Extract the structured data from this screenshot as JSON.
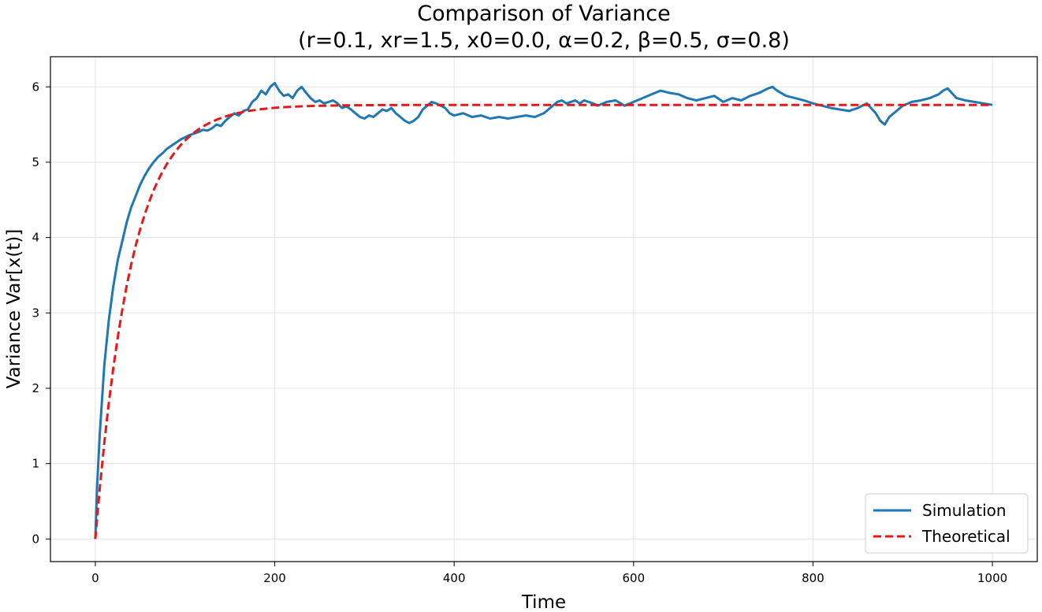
{
  "chart_data": {
    "type": "line",
    "title": "Comparison of Variance",
    "subtitle": "(r=0.1, xr=1.5, x0=0.0, α=0.2, β=0.5, σ=0.8)",
    "xlabel": "Time",
    "ylabel": "Variance Var[x(t)]",
    "xlim": [
      -50,
      1050
    ],
    "ylim": [
      -0.3,
      6.4
    ],
    "xticks": [
      0,
      200,
      400,
      600,
      800,
      1000
    ],
    "yticks": [
      0,
      1,
      2,
      3,
      4,
      5,
      6
    ],
    "grid": true,
    "legend_position": "lower-right",
    "series": [
      {
        "name": "Simulation",
        "color": "#1f77b4",
        "style": "solid",
        "x": [
          0,
          2,
          5,
          10,
          15,
          20,
          25,
          30,
          35,
          40,
          45,
          50,
          55,
          60,
          65,
          70,
          75,
          80,
          85,
          90,
          95,
          100,
          105,
          110,
          115,
          120,
          125,
          130,
          135,
          140,
          145,
          150,
          155,
          160,
          165,
          170,
          175,
          180,
          185,
          190,
          195,
          200,
          205,
          210,
          215,
          220,
          225,
          230,
          235,
          240,
          245,
          250,
          255,
          260,
          265,
          270,
          275,
          280,
          285,
          290,
          295,
          300,
          305,
          310,
          315,
          320,
          325,
          330,
          335,
          340,
          345,
          350,
          355,
          360,
          365,
          370,
          375,
          380,
          385,
          390,
          395,
          400,
          410,
          420,
          430,
          440,
          450,
          460,
          470,
          480,
          490,
          500,
          505,
          510,
          515,
          520,
          525,
          530,
          535,
          540,
          545,
          550,
          555,
          560,
          570,
          580,
          590,
          600,
          610,
          620,
          630,
          640,
          650,
          660,
          670,
          680,
          690,
          700,
          710,
          720,
          730,
          740,
          750,
          755,
          760,
          770,
          780,
          790,
          800,
          810,
          820,
          830,
          840,
          850,
          860,
          870,
          875,
          880,
          885,
          890,
          900,
          910,
          920,
          930,
          940,
          945,
          950,
          960,
          970,
          980,
          990,
          1000
        ],
        "values": [
          0,
          0.7,
          1.4,
          2.3,
          2.9,
          3.35,
          3.7,
          3.95,
          4.2,
          4.4,
          4.55,
          4.7,
          4.82,
          4.92,
          5.0,
          5.07,
          5.12,
          5.18,
          5.22,
          5.26,
          5.3,
          5.33,
          5.36,
          5.38,
          5.4,
          5.43,
          5.42,
          5.45,
          5.5,
          5.48,
          5.55,
          5.6,
          5.65,
          5.62,
          5.68,
          5.7,
          5.8,
          5.85,
          5.95,
          5.9,
          6.0,
          6.05,
          5.95,
          5.88,
          5.9,
          5.85,
          5.95,
          6.0,
          5.92,
          5.85,
          5.8,
          5.82,
          5.78,
          5.8,
          5.82,
          5.78,
          5.72,
          5.74,
          5.7,
          5.65,
          5.6,
          5.58,
          5.62,
          5.6,
          5.65,
          5.7,
          5.68,
          5.72,
          5.65,
          5.6,
          5.55,
          5.52,
          5.55,
          5.6,
          5.7,
          5.75,
          5.8,
          5.78,
          5.75,
          5.72,
          5.65,
          5.62,
          5.65,
          5.6,
          5.62,
          5.58,
          5.6,
          5.58,
          5.6,
          5.62,
          5.6,
          5.65,
          5.7,
          5.75,
          5.8,
          5.82,
          5.78,
          5.8,
          5.82,
          5.78,
          5.82,
          5.8,
          5.78,
          5.75,
          5.8,
          5.82,
          5.75,
          5.8,
          5.85,
          5.9,
          5.95,
          5.92,
          5.9,
          5.85,
          5.82,
          5.85,
          5.88,
          5.8,
          5.85,
          5.82,
          5.88,
          5.92,
          5.98,
          6.0,
          5.95,
          5.88,
          5.85,
          5.82,
          5.78,
          5.75,
          5.72,
          5.7,
          5.68,
          5.72,
          5.78,
          5.65,
          5.55,
          5.5,
          5.6,
          5.65,
          5.75,
          5.8,
          5.82,
          5.85,
          5.9,
          5.95,
          5.98,
          5.85,
          5.82,
          5.8,
          5.78,
          5.76
        ]
      },
      {
        "name": "Theoretical",
        "color": "#e31a1c",
        "style": "dashed",
        "theoretical": {
          "v_inf": 5.76,
          "rate": 0.025
        }
      }
    ]
  }
}
